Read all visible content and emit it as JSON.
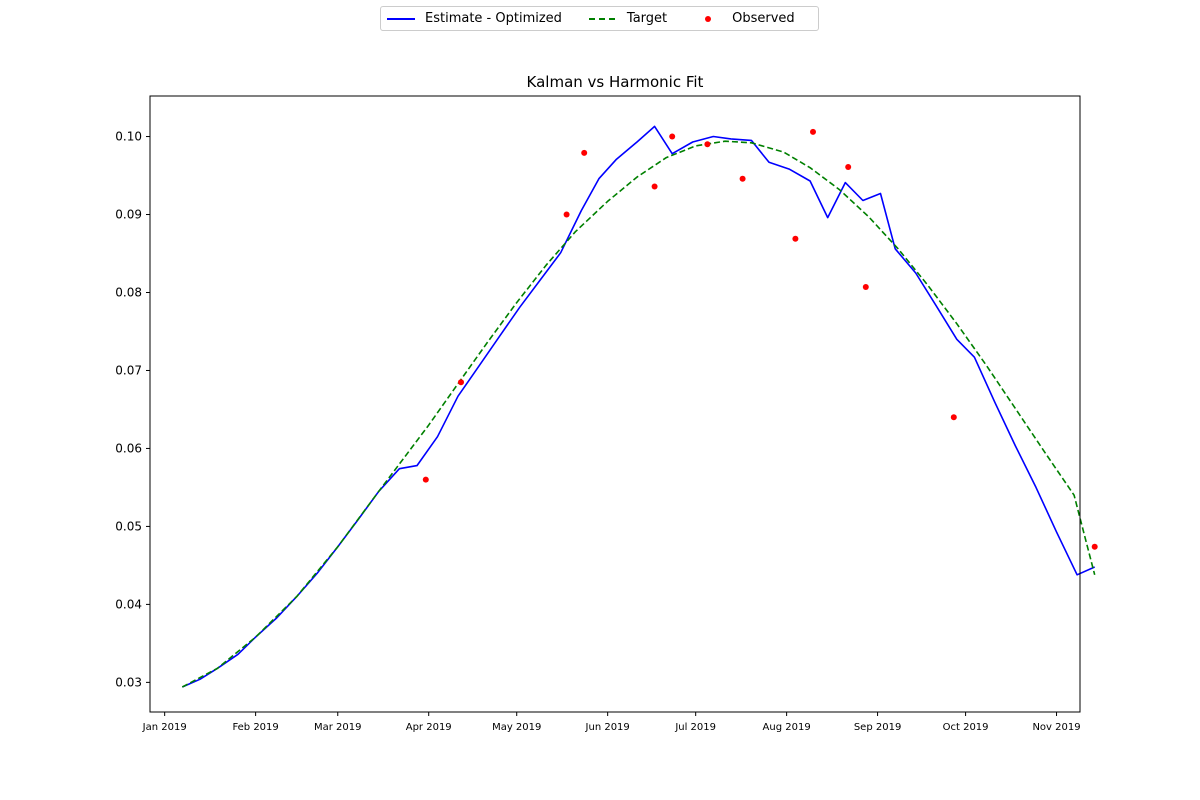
{
  "chart_data": {
    "type": "line",
    "title": "Kalman vs Harmonic Fit",
    "xlabel": "",
    "ylabel": "",
    "x_axis": "date",
    "xlim": [
      "2018-12-27",
      "2019-11-09"
    ],
    "ylim": [
      0.0262,
      0.1052
    ],
    "grid": false,
    "legend_placement": "top-center",
    "x_ticks": [
      "2019-01-01",
      "2019-02-01",
      "2019-03-01",
      "2019-04-01",
      "2019-05-01",
      "2019-06-01",
      "2019-07-01",
      "2019-08-01",
      "2019-09-01",
      "2019-10-01",
      "2019-11-01"
    ],
    "x_tick_labels": [
      "Jan 2019",
      "Feb 2019",
      "Mar 2019",
      "Apr 2019",
      "May 2019",
      "Jun 2019",
      "Jul 2019",
      "Aug 2019",
      "Sep 2019",
      "Oct 2019",
      "Nov 2019"
    ],
    "y_ticks": [
      0.03,
      0.04,
      0.05,
      0.06,
      0.07,
      0.08,
      0.09,
      0.1
    ],
    "y_tick_labels": [
      "0.03",
      "0.04",
      "0.05",
      "0.06",
      "0.07",
      "0.08",
      "0.09",
      "0.10"
    ],
    "series": [
      {
        "name": "Estimate - Optimized",
        "kind": "line",
        "style": "solid",
        "color": "#0000ff",
        "points": [
          [
            "2019-01-07",
            0.0294
          ],
          [
            "2019-01-13",
            0.0304
          ],
          [
            "2019-01-19",
            0.0318
          ],
          [
            "2019-01-26",
            0.0336
          ],
          [
            "2019-02-01",
            0.0358
          ],
          [
            "2019-02-08",
            0.0382
          ],
          [
            "2019-02-15",
            0.041
          ],
          [
            "2019-02-22",
            0.044
          ],
          [
            "2019-03-01",
            0.0474
          ],
          [
            "2019-03-08",
            0.0509
          ],
          [
            "2019-03-15",
            0.0545
          ],
          [
            "2019-03-22",
            0.0574
          ],
          [
            "2019-03-28",
            0.0578
          ],
          [
            "2019-04-04",
            0.0615
          ],
          [
            "2019-04-11",
            0.0667
          ],
          [
            "2019-04-18",
            0.0705
          ],
          [
            "2019-04-25",
            0.0743
          ],
          [
            "2019-05-02",
            0.0781
          ],
          [
            "2019-05-09",
            0.0816
          ],
          [
            "2019-05-16",
            0.0851
          ],
          [
            "2019-05-23",
            0.0905
          ],
          [
            "2019-05-29",
            0.0946
          ],
          [
            "2019-06-04",
            0.0971
          ],
          [
            "2019-06-11",
            0.0993
          ],
          [
            "2019-06-17",
            0.1013
          ],
          [
            "2019-06-23",
            0.0978
          ],
          [
            "2019-06-30",
            0.0993
          ],
          [
            "2019-07-07",
            0.1
          ],
          [
            "2019-07-13",
            0.0997
          ],
          [
            "2019-07-20",
            0.0995
          ],
          [
            "2019-07-26",
            0.0967
          ],
          [
            "2019-08-02",
            0.0958
          ],
          [
            "2019-08-09",
            0.0943
          ],
          [
            "2019-08-15",
            0.0896
          ],
          [
            "2019-08-21",
            0.0941
          ],
          [
            "2019-08-27",
            0.0918
          ],
          [
            "2019-09-02",
            0.0927
          ],
          [
            "2019-09-07",
            0.0856
          ],
          [
            "2019-09-14",
            0.0825
          ],
          [
            "2019-09-21",
            0.0783
          ],
          [
            "2019-09-28",
            0.074
          ],
          [
            "2019-10-04",
            0.0717
          ],
          [
            "2019-10-11",
            0.0659
          ],
          [
            "2019-10-18",
            0.0603
          ],
          [
            "2019-10-25",
            0.055
          ],
          [
            "2019-11-01",
            0.0493
          ],
          [
            "2019-11-08",
            0.0438
          ],
          [
            "2019-11-14",
            0.0448
          ]
        ]
      },
      {
        "name": "Target",
        "kind": "line",
        "style": "dashed",
        "color": "#008000",
        "points": [
          [
            "2019-01-07",
            0.0294
          ],
          [
            "2019-01-19",
            0.0318
          ],
          [
            "2019-02-01",
            0.0358
          ],
          [
            "2019-02-15",
            0.041
          ],
          [
            "2019-03-01",
            0.0474
          ],
          [
            "2019-03-15",
            0.0545
          ],
          [
            "2019-03-22",
            0.058
          ],
          [
            "2019-04-01",
            0.063
          ],
          [
            "2019-04-11",
            0.0683
          ],
          [
            "2019-04-21",
            0.0736
          ],
          [
            "2019-05-01",
            0.0787
          ],
          [
            "2019-05-11",
            0.0835
          ],
          [
            "2019-05-21",
            0.0878
          ],
          [
            "2019-06-01",
            0.0917
          ],
          [
            "2019-06-11",
            0.0948
          ],
          [
            "2019-06-21",
            0.0973
          ],
          [
            "2019-07-01",
            0.0988
          ],
          [
            "2019-07-11",
            0.0994
          ],
          [
            "2019-07-20",
            0.0992
          ],
          [
            "2019-07-31",
            0.098
          ],
          [
            "2019-08-09",
            0.096
          ],
          [
            "2019-08-19",
            0.0932
          ],
          [
            "2019-08-29",
            0.0897
          ],
          [
            "2019-09-08",
            0.0856
          ],
          [
            "2019-09-18",
            0.081
          ],
          [
            "2019-09-28",
            0.076
          ],
          [
            "2019-10-08",
            0.0707
          ],
          [
            "2019-10-18",
            0.0651
          ],
          [
            "2019-10-28",
            0.0595
          ],
          [
            "2019-11-07",
            0.054
          ],
          [
            "2019-11-14",
            0.0438
          ]
        ]
      },
      {
        "name": "Observed",
        "kind": "scatter",
        "color": "#ff0000",
        "points": [
          [
            "2019-03-31",
            0.056
          ],
          [
            "2019-04-12",
            0.0685
          ],
          [
            "2019-05-18",
            0.09
          ],
          [
            "2019-05-24",
            0.0979
          ],
          [
            "2019-06-17",
            0.0936
          ],
          [
            "2019-06-23",
            0.1
          ],
          [
            "2019-07-05",
            0.099
          ],
          [
            "2019-07-17",
            0.0946
          ],
          [
            "2019-08-04",
            0.0869
          ],
          [
            "2019-08-10",
            0.1006
          ],
          [
            "2019-08-22",
            0.0961
          ],
          [
            "2019-08-28",
            0.0807
          ],
          [
            "2019-09-27",
            0.064
          ],
          [
            "2019-11-14",
            0.0474
          ]
        ]
      }
    ]
  }
}
